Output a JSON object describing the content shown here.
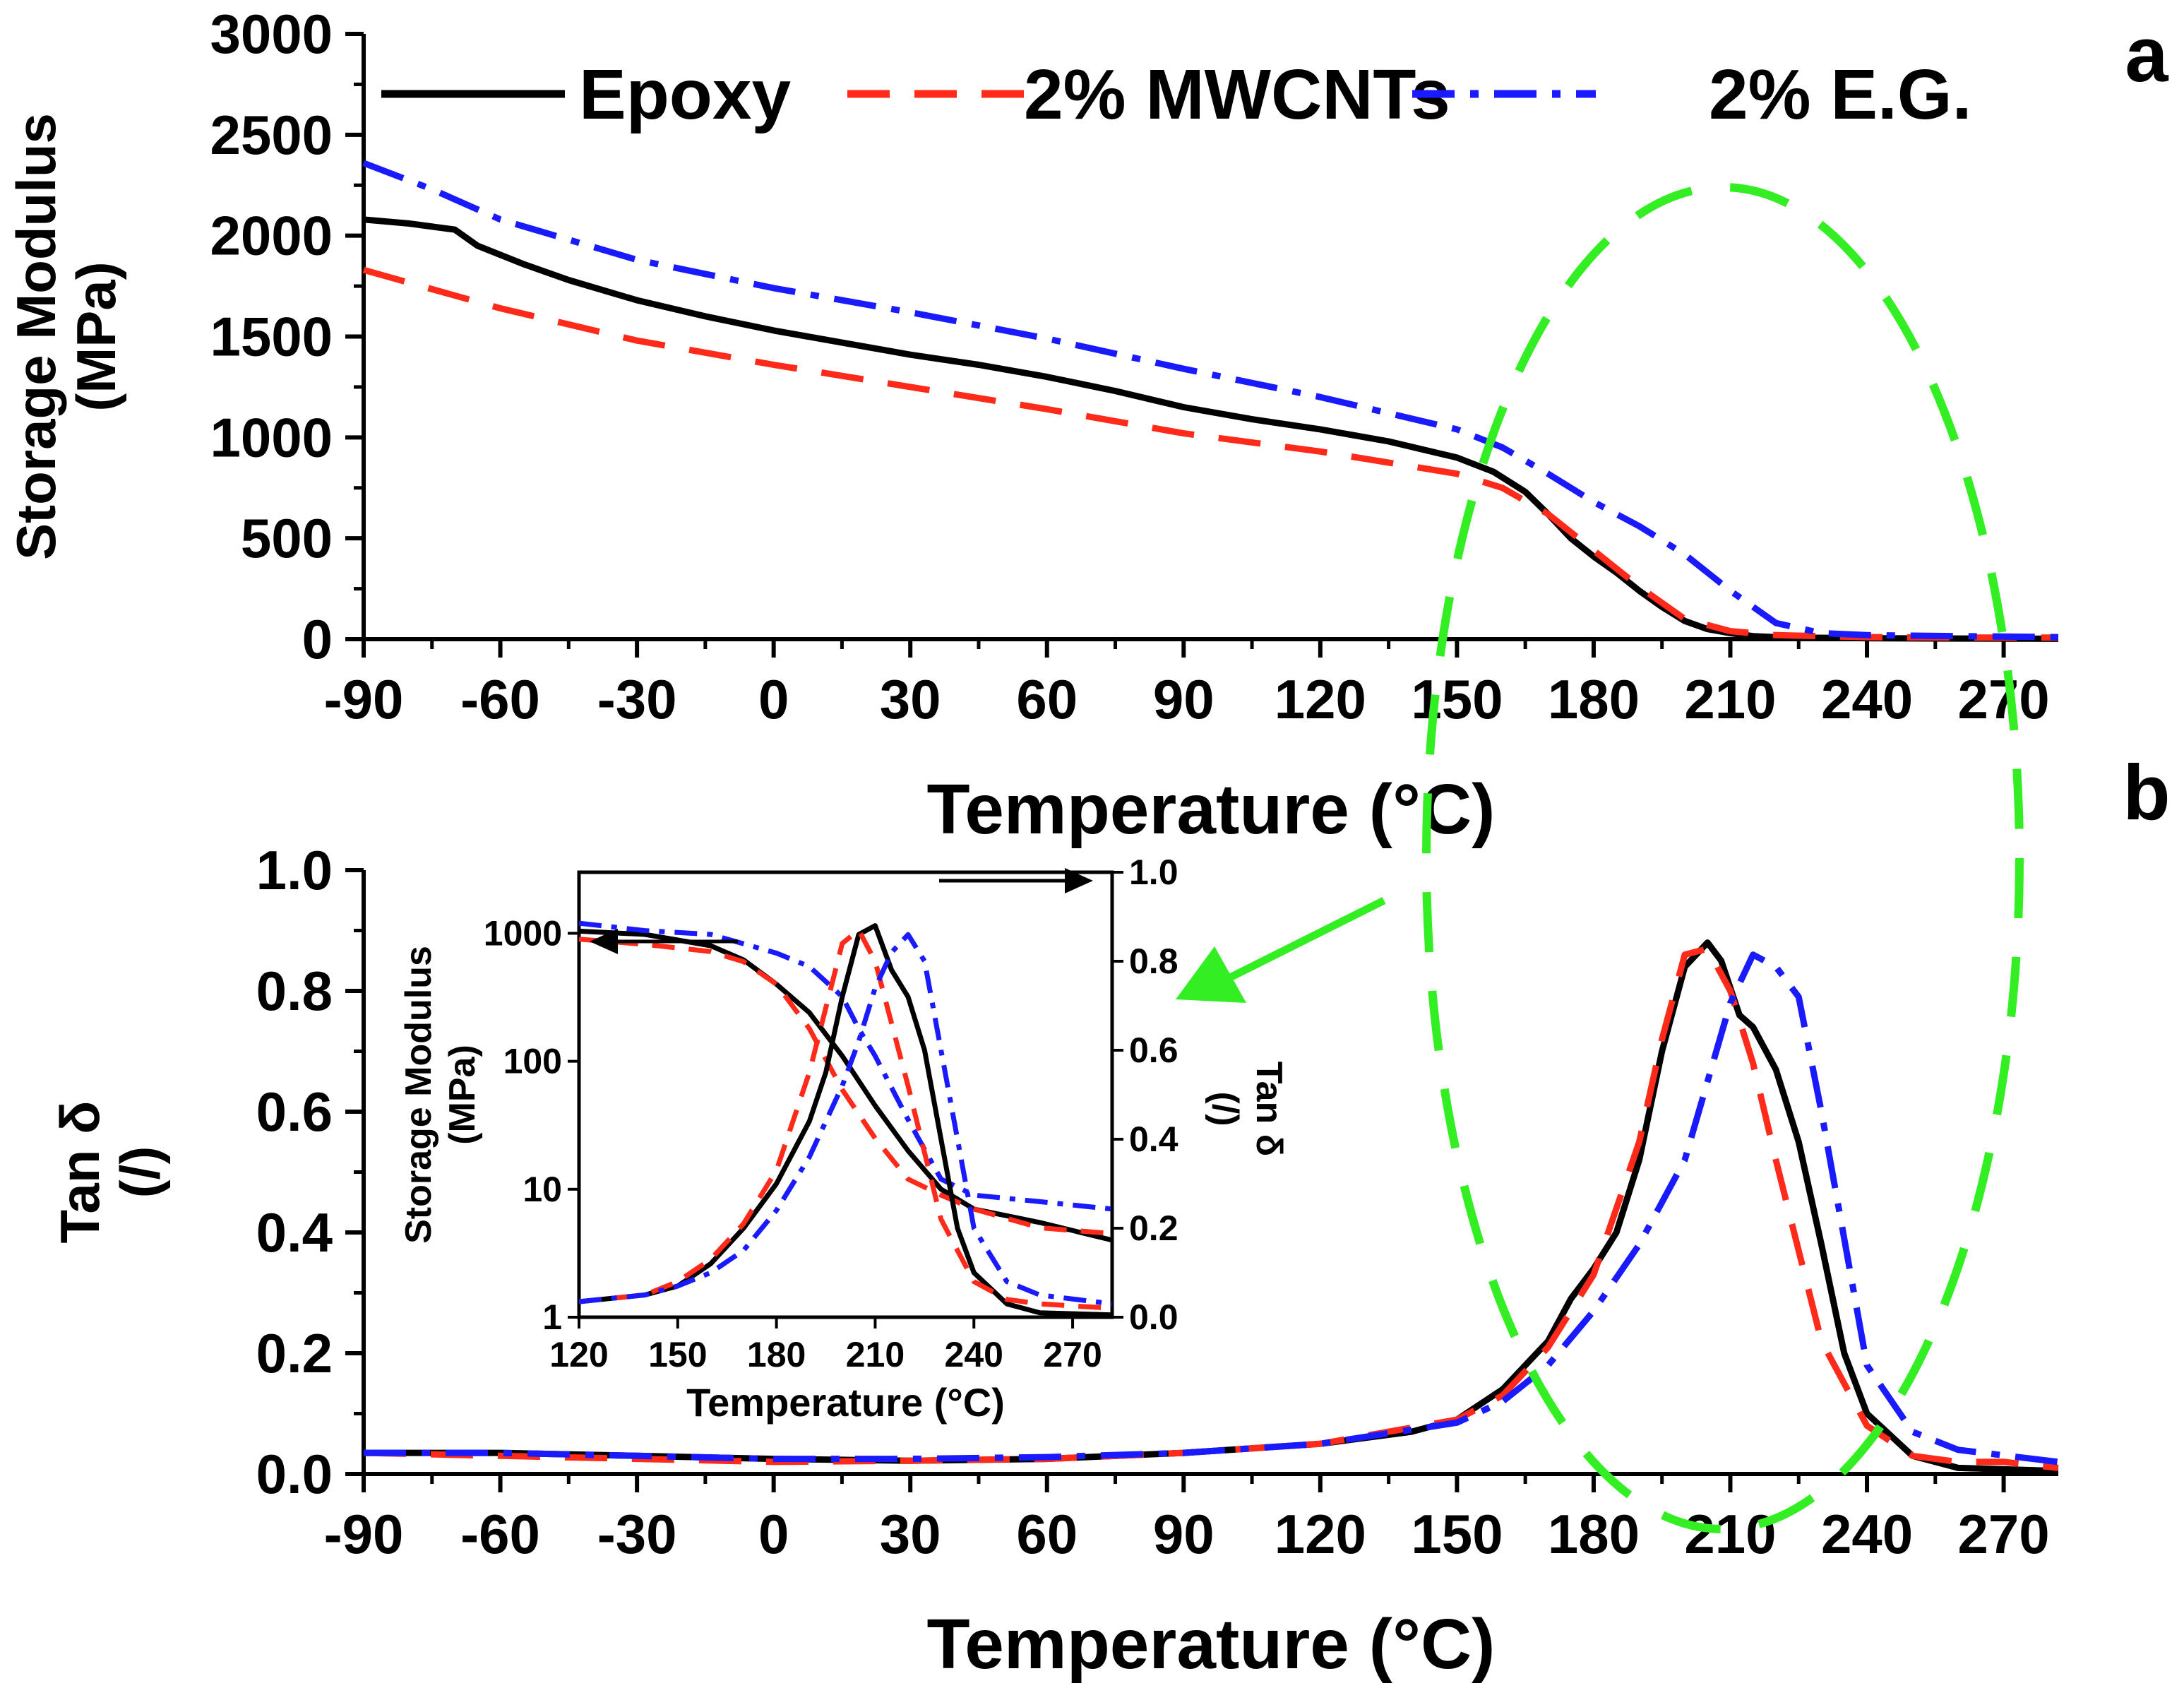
{
  "chart_data": [
    {
      "panel": "a",
      "type": "line",
      "xlabel": "Temperature (°C)",
      "ylabel_lines": [
        "Storage Modulus",
        "(MPa)"
      ],
      "xlim": [
        -90,
        282
      ],
      "ylim": [
        0,
        3000
      ],
      "xticks": [
        -90,
        -60,
        -30,
        0,
        30,
        60,
        90,
        120,
        150,
        180,
        210,
        240,
        270
      ],
      "yticks": [
        0,
        500,
        1000,
        1500,
        2000,
        2500,
        3000
      ],
      "legend": {
        "placement": "top"
      },
      "series": [
        {
          "name": "Epoxy",
          "color": "#000000",
          "style": "solid",
          "x": [
            -90,
            -80,
            -70,
            -65,
            -55,
            -45,
            -30,
            -15,
            0,
            15,
            30,
            45,
            60,
            75,
            90,
            105,
            120,
            135,
            150,
            158,
            165,
            170,
            175,
            180,
            185,
            190,
            195,
            200,
            205,
            210,
            215,
            222,
            240,
            260,
            282
          ],
          "y": [
            2080,
            2060,
            2030,
            1950,
            1860,
            1780,
            1680,
            1600,
            1530,
            1470,
            1410,
            1360,
            1300,
            1230,
            1150,
            1090,
            1040,
            980,
            900,
            830,
            730,
            620,
            500,
            410,
            330,
            240,
            160,
            90,
            50,
            30,
            15,
            8,
            5,
            3,
            2
          ]
        },
        {
          "name": "2% MWCNTs",
          "color": "#ff2a1a",
          "style": "dashed",
          "x": [
            -90,
            -60,
            -30,
            0,
            30,
            60,
            90,
            120,
            150,
            160,
            170,
            180,
            190,
            200,
            210,
            220,
            240,
            260,
            282
          ],
          "y": [
            1830,
            1640,
            1480,
            1360,
            1250,
            1140,
            1020,
            930,
            820,
            750,
            620,
            440,
            260,
            100,
            40,
            20,
            10,
            8,
            8
          ]
        },
        {
          "name": "2% E.G.",
          "color": "#1a1aff",
          "style": "dashdot",
          "x": [
            -90,
            -75,
            -60,
            -30,
            0,
            30,
            60,
            90,
            120,
            150,
            160,
            170,
            180,
            190,
            200,
            210,
            220,
            230,
            240,
            260,
            282
          ],
          "y": [
            2360,
            2230,
            2080,
            1880,
            1740,
            1620,
            1490,
            1340,
            1200,
            1040,
            950,
            820,
            680,
            560,
            420,
            240,
            80,
            30,
            20,
            15,
            10
          ]
        }
      ]
    },
    {
      "panel": "b",
      "type": "line",
      "xlabel": "Temperature (°C)",
      "ylabel_lines": [
        "Tan δ",
        "(/)"
      ],
      "xlim": [
        -90,
        282
      ],
      "ylim": [
        0,
        1.0
      ],
      "xticks": [
        -90,
        -60,
        -30,
        0,
        30,
        60,
        90,
        120,
        150,
        180,
        210,
        240,
        270
      ],
      "yticks": [
        0.0,
        0.2,
        0.4,
        0.6,
        0.8,
        1.0
      ],
      "series": [
        {
          "name": "Epoxy",
          "color": "#000000",
          "style": "solid",
          "x": [
            -90,
            -60,
            -30,
            0,
            30,
            60,
            90,
            120,
            140,
            150,
            160,
            170,
            175,
            180,
            185,
            190,
            195,
            200,
            205,
            208,
            212,
            215,
            220,
            225,
            230,
            235,
            240,
            250,
            260,
            282
          ],
          "y": [
            0.035,
            0.035,
            0.03,
            0.025,
            0.022,
            0.025,
            0.035,
            0.05,
            0.07,
            0.09,
            0.14,
            0.22,
            0.29,
            0.34,
            0.4,
            0.52,
            0.7,
            0.84,
            0.88,
            0.85,
            0.76,
            0.74,
            0.67,
            0.55,
            0.38,
            0.2,
            0.1,
            0.03,
            0.01,
            0.005
          ]
        },
        {
          "name": "2% MWCNTs",
          "color": "#ff2a1a",
          "style": "dashed",
          "x": [
            -90,
            -60,
            -30,
            0,
            30,
            60,
            90,
            120,
            150,
            160,
            170,
            180,
            190,
            195,
            200,
            205,
            210,
            215,
            220,
            230,
            240,
            250,
            260,
            270,
            282
          ],
          "y": [
            0.035,
            0.03,
            0.025,
            0.02,
            0.022,
            0.025,
            0.035,
            0.05,
            0.09,
            0.13,
            0.21,
            0.33,
            0.55,
            0.72,
            0.86,
            0.87,
            0.8,
            0.68,
            0.52,
            0.22,
            0.08,
            0.03,
            0.02,
            0.02,
            0.01
          ]
        },
        {
          "name": "2% E.G.",
          "color": "#1a1aff",
          "style": "dashdot",
          "x": [
            -90,
            -60,
            -30,
            0,
            30,
            60,
            90,
            120,
            150,
            160,
            170,
            180,
            190,
            200,
            205,
            210,
            215,
            220,
            225,
            230,
            240,
            250,
            260,
            282
          ],
          "y": [
            0.035,
            0.035,
            0.03,
            0.025,
            0.025,
            0.028,
            0.035,
            0.05,
            0.085,
            0.12,
            0.18,
            0.27,
            0.38,
            0.52,
            0.65,
            0.78,
            0.86,
            0.84,
            0.79,
            0.6,
            0.18,
            0.07,
            0.04,
            0.02
          ]
        }
      ]
    },
    {
      "panel": "inset",
      "type": "line",
      "xlabel": "Temperature (°C)",
      "ylabel_left_lines": [
        "Storage Modulus",
        "(MPa)"
      ],
      "ylabel_right_lines": [
        "Tan δ",
        "(/)"
      ],
      "xlim": [
        120,
        282
      ],
      "ylim_left_log": [
        1,
        3000
      ],
      "ylim_right": [
        0.0,
        1.0
      ],
      "xticks": [
        120,
        150,
        180,
        210,
        240,
        270
      ],
      "yticks_left": [
        1,
        10,
        100,
        1000
      ],
      "ytick_labels_left": [
        "1",
        "10",
        "100",
        "1000"
      ],
      "yticks_right": [
        0.0,
        0.2,
        0.4,
        0.6,
        0.8,
        1.0
      ],
      "ytick_labels_right": [
        "0.0",
        "0.2",
        "0.4",
        "0.6",
        "0.8",
        "1.0"
      ],
      "modulus_series": [
        {
          "name": "Epoxy",
          "color": "#000000",
          "style": "solid",
          "x": [
            120,
            140,
            160,
            170,
            180,
            190,
            200,
            210,
            220,
            230,
            240,
            260,
            282
          ],
          "y": [
            1040,
            980,
            800,
            620,
            400,
            240,
            110,
            45,
            20,
            10,
            7,
            5.5,
            4
          ]
        },
        {
          "name": "2% MWCNTs",
          "color": "#ff2a1a",
          "style": "dashed",
          "x": [
            120,
            140,
            160,
            170,
            180,
            190,
            200,
            210,
            220,
            230,
            240,
            260,
            282
          ],
          "y": [
            900,
            820,
            720,
            600,
            400,
            180,
            60,
            25,
            12,
            9,
            7,
            5,
            4.5
          ]
        },
        {
          "name": "2% E.G.",
          "color": "#1a1aff",
          "style": "dashdot",
          "x": [
            120,
            140,
            160,
            180,
            190,
            200,
            205,
            210,
            220,
            230,
            240,
            260,
            282
          ],
          "y": [
            1200,
            1050,
            980,
            700,
            550,
            320,
            180,
            110,
            35,
            12,
            9,
            8,
            7
          ]
        }
      ],
      "tan_series": [
        {
          "name": "Epoxy",
          "color": "#000000",
          "style": "solid",
          "x": [
            120,
            140,
            150,
            160,
            170,
            180,
            190,
            195,
            200,
            205,
            210,
            215,
            220,
            225,
            230,
            235,
            240,
            250,
            260,
            282
          ],
          "y": [
            0.035,
            0.05,
            0.07,
            0.12,
            0.2,
            0.3,
            0.44,
            0.55,
            0.72,
            0.86,
            0.88,
            0.78,
            0.72,
            0.6,
            0.4,
            0.2,
            0.1,
            0.03,
            0.01,
            0.005
          ]
        },
        {
          "name": "2% MWCNTs",
          "color": "#ff2a1a",
          "style": "dashed",
          "x": [
            120,
            140,
            150,
            160,
            170,
            180,
            190,
            200,
            205,
            210,
            215,
            220,
            230,
            240,
            250,
            260,
            282
          ],
          "y": [
            0.035,
            0.05,
            0.08,
            0.13,
            0.21,
            0.33,
            0.55,
            0.84,
            0.87,
            0.8,
            0.66,
            0.52,
            0.22,
            0.08,
            0.04,
            0.03,
            0.02
          ]
        },
        {
          "name": "2% E.G.",
          "color": "#1a1aff",
          "style": "dashdot",
          "x": [
            120,
            140,
            150,
            160,
            170,
            180,
            190,
            200,
            205,
            210,
            215,
            220,
            225,
            230,
            240,
            250,
            260,
            282
          ],
          "y": [
            0.035,
            0.05,
            0.07,
            0.1,
            0.15,
            0.24,
            0.36,
            0.52,
            0.62,
            0.74,
            0.82,
            0.86,
            0.8,
            0.6,
            0.2,
            0.08,
            0.05,
            0.03
          ]
        }
      ],
      "arrow_left_points_to": "Storage Modulus axis",
      "arrow_right_points_to": "Tan δ axis"
    }
  ],
  "panel_labels": {
    "a": "a",
    "b": "b"
  },
  "legend_entries": [
    "Epoxy",
    "2% MWCNTs",
    "2% E.G."
  ],
  "highlight": {
    "shape": "dashed-ellipse",
    "color": "#33ee22",
    "meaning": "peak region 150–260 °C magnified in inset"
  }
}
